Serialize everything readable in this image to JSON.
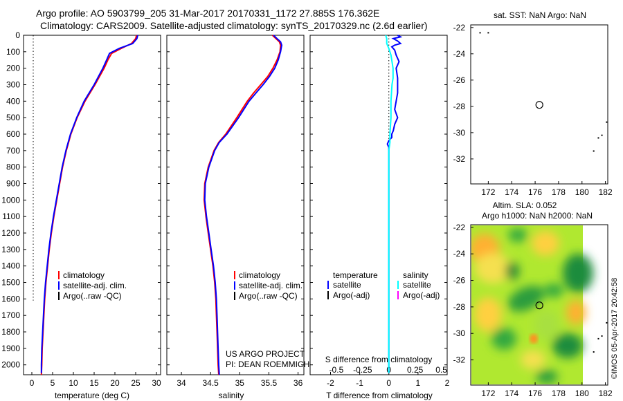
{
  "title_line1": "Argo profile: AO 5903799_205 31-Mar-2017 20170331_1172 27.885S 176.362E",
  "title_line2": "Climatology: CARS2009. Satellite-adjusted climatology: synTS_20170329.nc (2.6d earlier)",
  "colors": {
    "climatology": "#ff0000",
    "satellite": "#0000ff",
    "argo": "#000000",
    "sal_satellite": "#00ffff",
    "sal_argo": "#ff00ff"
  },
  "depth_axis": {
    "ylim": [
      0,
      2060
    ],
    "ticks": [
      "0",
      "100",
      "200",
      "300",
      "400",
      "500",
      "600",
      "700",
      "800",
      "900",
      "1000",
      "1100",
      "1200",
      "1300",
      "1400",
      "1500",
      "1600",
      "1700",
      "1800",
      "1900",
      "2000"
    ]
  },
  "legend": {
    "climatology": "climatology",
    "satellite_adj": "satellite-adj. clim.",
    "argo_raw": "Argo(..raw -QC)"
  },
  "diff_legend": {
    "temperature_header": "temperature",
    "salinity_header": "salinity",
    "satellite": "satellite",
    "argo_adj": "Argo(-adj)"
  },
  "project": {
    "line1": "US ARGO PROJECT",
    "line2": "PI: DEAN ROEMMICH"
  },
  "chart_data": [
    {
      "name": "temperature",
      "type": "line",
      "xlabel": "temperature (deg C)",
      "ylabel": "",
      "xlim": [
        -2,
        31
      ],
      "ylim": [
        0,
        2060
      ],
      "xticks": [
        "0",
        "5",
        "10",
        "15",
        "20",
        "25",
        "30"
      ],
      "series": [
        {
          "name": "climatology",
          "depth": [
            0,
            20,
            50,
            80,
            110,
            150,
            200,
            300,
            400,
            500,
            600,
            700,
            800,
            900,
            1000,
            1100,
            1200,
            1300,
            1400,
            1500,
            1600,
            1700,
            1800,
            1900,
            2000,
            2060
          ],
          "values": [
            25.2,
            25.0,
            24.0,
            21.5,
            19.2,
            18.3,
            17.4,
            15.2,
            12.8,
            10.9,
            9.4,
            8.3,
            7.4,
            6.7,
            6.0,
            5.3,
            4.7,
            4.2,
            3.8,
            3.4,
            3.1,
            2.9,
            2.7,
            2.5,
            2.4,
            2.3
          ]
        },
        {
          "name": "satellite-adj. clim.",
          "depth": [
            0,
            20,
            50,
            80,
            110,
            150,
            200,
            300,
            400,
            500,
            600,
            700,
            800,
            900,
            1000,
            1100,
            1200,
            1300,
            1400,
            1500,
            1600,
            1700,
            1800,
            1900,
            2000,
            2050
          ],
          "values": [
            25.5,
            25.3,
            24.3,
            21.0,
            18.7,
            18.0,
            17.1,
            15.0,
            12.6,
            10.8,
            9.3,
            8.2,
            7.3,
            6.6,
            5.9,
            5.2,
            4.6,
            4.1,
            3.7,
            3.3,
            3.0,
            2.8,
            2.6,
            2.4,
            2.3,
            2.3
          ]
        },
        {
          "name": "Argo(..raw -QC)",
          "depth": [],
          "values": []
        }
      ],
      "annotations": [
        {
          "type": "dotted-line",
          "x": 0,
          "depth_from": 0,
          "depth_to": 1610
        }
      ]
    },
    {
      "name": "salinity",
      "type": "line",
      "xlabel": "salinity",
      "ylabel": "",
      "xlim": [
        33.75,
        36.1
      ],
      "ylim": [
        0,
        2060
      ],
      "xticks": [
        "34",
        "34.5",
        "35",
        "35.5",
        "36"
      ],
      "series": [
        {
          "name": "climatology",
          "depth": [
            0,
            20,
            40,
            60,
            100,
            150,
            200,
            250,
            300,
            350,
            400,
            500,
            600,
            650,
            700,
            800,
            900,
            1000,
            1100,
            1200,
            1300,
            1400,
            1500,
            1600,
            1700,
            1800,
            1900,
            2000,
            2060
          ],
          "values": [
            35.56,
            35.62,
            35.68,
            35.7,
            35.69,
            35.64,
            35.57,
            35.48,
            35.36,
            35.24,
            35.13,
            34.95,
            34.76,
            34.64,
            34.56,
            34.46,
            34.4,
            34.39,
            34.42,
            34.46,
            34.5,
            34.54,
            34.57,
            34.59,
            34.6,
            34.61,
            34.62,
            34.63,
            34.64
          ]
        },
        {
          "name": "satellite-adj. clim.",
          "depth": [
            0,
            20,
            40,
            60,
            100,
            150,
            200,
            250,
            300,
            350,
            400,
            500,
            600,
            650,
            700,
            800,
            900,
            1000,
            1100,
            1200,
            1300,
            1400,
            1500,
            1600,
            1700,
            1800,
            1900,
            2000,
            2060
          ],
          "values": [
            35.58,
            35.64,
            35.7,
            35.72,
            35.7,
            35.66,
            35.6,
            35.51,
            35.4,
            35.28,
            35.16,
            34.98,
            34.78,
            34.65,
            34.57,
            34.47,
            34.41,
            34.4,
            34.43,
            34.47,
            34.51,
            34.55,
            34.58,
            34.6,
            34.61,
            34.62,
            34.63,
            34.64,
            34.65
          ]
        },
        {
          "name": "Argo(..raw -QC)",
          "depth": [],
          "values": []
        }
      ]
    },
    {
      "name": "difference",
      "type": "line",
      "xlabel": "T difference from climatology",
      "xlabel_top": "S difference from climatology",
      "xlim": [
        -2.7,
        2.0
      ],
      "ylim": [
        0,
        2060
      ],
      "xticks": [
        "-2",
        "-1",
        "0",
        "1",
        "2"
      ],
      "xticks_top": [
        "-0.5",
        "-0.25",
        "0",
        "0.25",
        "0.5"
      ],
      "series": [
        {
          "name": "temperature satellite",
          "depth": [
            0,
            10,
            20,
            35,
            50,
            60,
            70,
            90,
            120,
            160,
            200,
            260,
            300,
            350,
            400,
            450,
            500,
            540,
            580,
            600,
            620,
            640,
            660,
            680,
            700,
            800,
            900,
            1000,
            1200,
            1400,
            1600,
            1800,
            2000,
            2050
          ],
          "values": [
            0.3,
            0.4,
            0.15,
            0.3,
            0.4,
            0.2,
            0.1,
            0.2,
            0.25,
            0.35,
            0.25,
            0.3,
            0.3,
            0.3,
            0.25,
            0.2,
            0.3,
            0.2,
            0.15,
            0.1,
            0.1,
            0.0,
            -0.05,
            0.0,
            0.0,
            0.0,
            0.0,
            0.0,
            0.0,
            0.0,
            0.0,
            0.0,
            0.0,
            0.0
          ]
        },
        {
          "name": "salinity satellite",
          "depth": [
            0,
            20,
            50,
            80,
            120,
            160,
            200,
            260,
            300,
            400,
            500,
            600,
            650,
            700,
            800,
            1000,
            1200,
            1400,
            1600,
            1800,
            2000,
            2050
          ],
          "values": [
            -0.03,
            -0.02,
            -0.02,
            0.0,
            0.02,
            0.03,
            0.04,
            0.04,
            0.03,
            0.02,
            0.02,
            0.01,
            0.01,
            0.0,
            0.0,
            0.0,
            0.0,
            0.0,
            0.0,
            0.0,
            0.0,
            0.0
          ]
        },
        {
          "name": "temperature Argo(-adj)",
          "depth": [],
          "values": []
        },
        {
          "name": "salinity Argo(-adj)",
          "depth": [],
          "values": []
        }
      ]
    },
    {
      "name": "sst-map",
      "type": "scatter",
      "title": "sat. SST: NaN Argo: NaN",
      "xlim": [
        170.5,
        182.2
      ],
      "ylim": [
        -33.9,
        -21.8
      ],
      "xticks": [
        "172",
        "174",
        "176",
        "178",
        "180",
        "182"
      ],
      "yticks": [
        "-22",
        "-24",
        "-26",
        "-28",
        "-30",
        "-32"
      ],
      "marker": {
        "lon": 176.362,
        "lat": -27.885
      },
      "points": [
        [
          171.3,
          -22.4
        ],
        [
          172.0,
          -22.4
        ],
        [
          181.4,
          -30.4
        ],
        [
          181.7,
          -30.2
        ],
        [
          181.0,
          -31.4
        ],
        [
          182.1,
          -29.2
        ]
      ]
    },
    {
      "name": "sla-map",
      "type": "heatmap",
      "title_line1": "Altim. SLA: 0.052",
      "title_line2": "Argo h1000: NaN h2000: NaN",
      "xlim": [
        170.5,
        182.2
      ],
      "ylim": [
        -33.9,
        -21.8
      ],
      "xticks": [
        "172",
        "174",
        "176",
        "178",
        "180",
        "182"
      ],
      "yticks": [
        "-22",
        "-24",
        "-26",
        "-28",
        "-30",
        "-32"
      ],
      "marker": {
        "lon": 176.362,
        "lat": -27.885
      },
      "sla_value": 0.052
    }
  ],
  "imos_stamp": "©IMOS 05-Apr-2017 20:42:58"
}
